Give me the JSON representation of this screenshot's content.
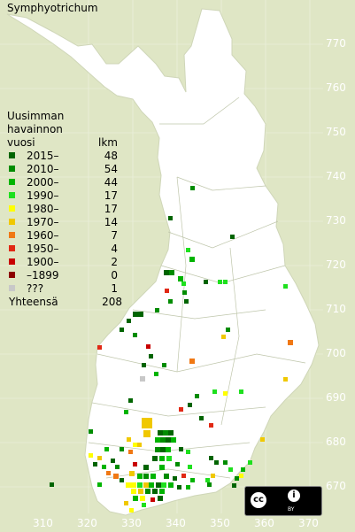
{
  "title": "Symphyotrichum",
  "legend": {
    "header_line1": "Uusimman",
    "header_line2": "havainnon",
    "header_line3": "vuosi",
    "count_header": "lkm",
    "items": [
      {
        "label": "2015–",
        "count": "48",
        "color": "#006400"
      },
      {
        "label": "2010–",
        "count": "54",
        "color": "#008c00"
      },
      {
        "label": "2000–",
        "count": "44",
        "color": "#00b400"
      },
      {
        "label": "1990–",
        "count": "17",
        "color": "#1ee01e"
      },
      {
        "label": "1980–",
        "count": "17",
        "color": "#ffff00"
      },
      {
        "label": "1970–",
        "count": "14",
        "color": "#f0c800"
      },
      {
        "label": "1960–",
        "count": "7",
        "color": "#f07814"
      },
      {
        "label": "1950–",
        "count": "4",
        "color": "#e12814"
      },
      {
        "label": "1900–",
        "count": "2",
        "color": "#c80000"
      },
      {
        "label": "–1899",
        "count": "0",
        "color": "#8c0000"
      },
      {
        "label": "???",
        "count": "1",
        "color": "#c8c8c8"
      }
    ],
    "total_label": "Yhteensä",
    "total_count": "208"
  },
  "y_axis_labels": [
    "770",
    "760",
    "750",
    "740",
    "730",
    "720",
    "710",
    "700",
    "690",
    "680",
    "670"
  ],
  "x_axis_labels": [
    "310",
    "320",
    "330",
    "340",
    "350",
    "360",
    "370"
  ],
  "license": {
    "icon_left": "cc",
    "icon_right": "i",
    "text": "BY"
  }
}
